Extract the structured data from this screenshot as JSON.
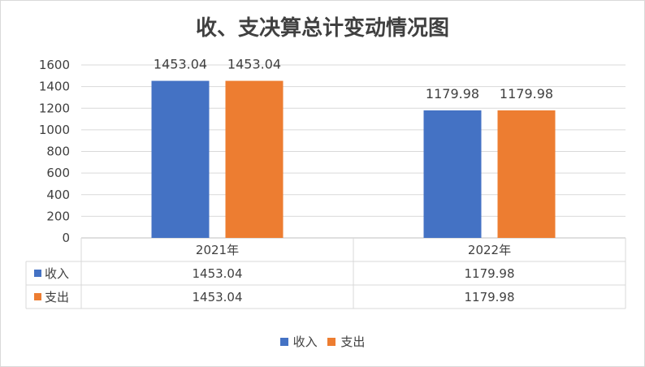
{
  "chart_data": {
    "type": "bar",
    "title": "收、支决算总计变动情况图",
    "categories": [
      "2021年",
      "2022年"
    ],
    "series": [
      {
        "name": "收入",
        "color": "#4472c4",
        "values": [
          1453.04,
          1179.98
        ],
        "labels": [
          "1453.04",
          "1179.98"
        ]
      },
      {
        "name": "支出",
        "color": "#ed7d31",
        "values": [
          1453.04,
          1179.98
        ],
        "labels": [
          "1453.04",
          "1179.98"
        ]
      }
    ],
    "ylim": [
      0,
      1600
    ],
    "yticks": [
      0,
      200,
      400,
      600,
      800,
      1000,
      1200,
      1400,
      1600
    ],
    "ytick_labels": [
      "0",
      "200",
      "400",
      "600",
      "800",
      "1000",
      "1200",
      "1400",
      "1600"
    ],
    "grid": true,
    "legend_position": "bottom",
    "data_table": true
  }
}
